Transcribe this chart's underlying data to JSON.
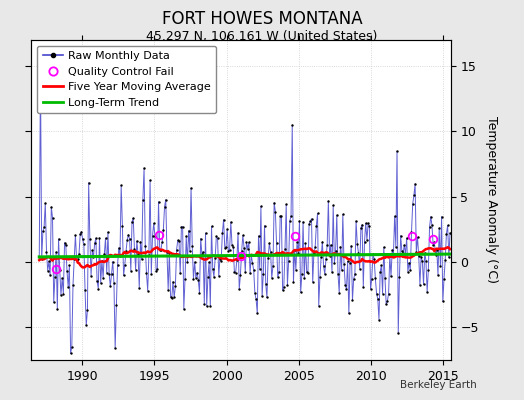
{
  "title": "FORT HOWES MONTANA",
  "subtitle": "45.297 N, 106.161 W (United States)",
  "ylabel": "Temperature Anomaly (°C)",
  "watermark": "Berkeley Earth",
  "xlim": [
    1986.5,
    2015.5
  ],
  "ylim": [
    -7.5,
    17
  ],
  "yticks": [
    -5,
    0,
    5,
    10,
    15
  ],
  "xticks": [
    1990,
    1995,
    2000,
    2005,
    2010,
    2015
  ],
  "bg_color": "#e8e8e8",
  "plot_bg_color": "#ffffff",
  "raw_line_color": "#4444cc",
  "raw_dot_color": "#000000",
  "ma_color": "#ff0000",
  "trend_color": "#00bb00",
  "qc_color": "#ff00ff",
  "title_fontsize": 12,
  "subtitle_fontsize": 9,
  "legend_fontsize": 8,
  "axis_fontsize": 9
}
